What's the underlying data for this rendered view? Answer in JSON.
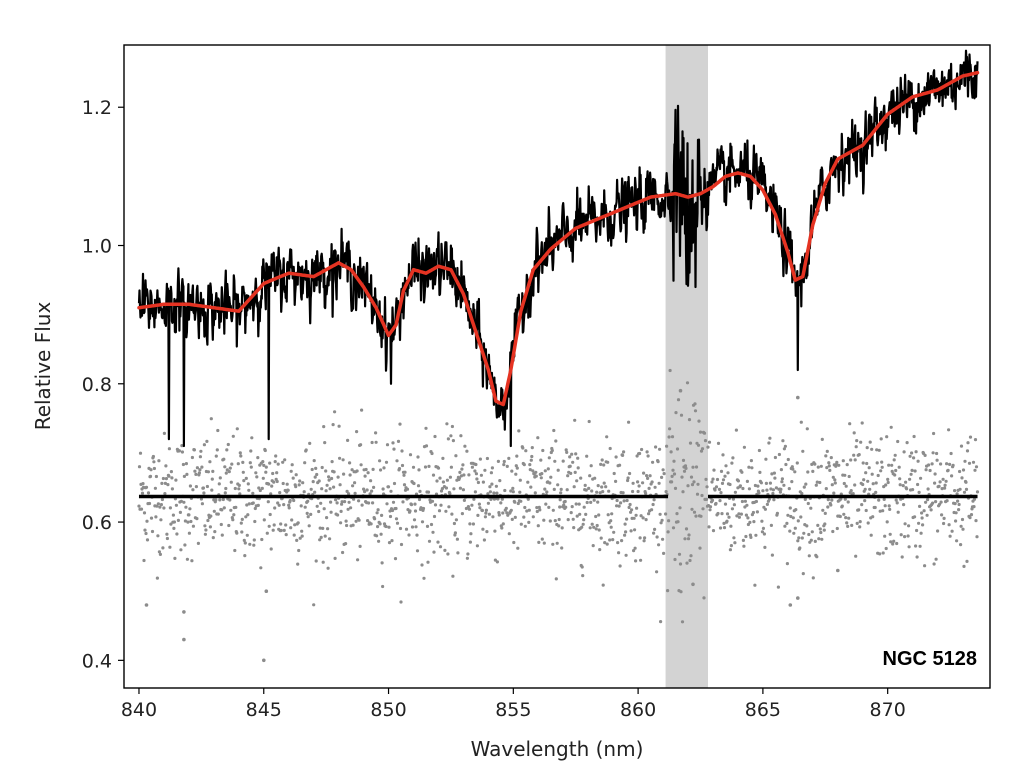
{
  "chart_data": {
    "type": "line",
    "title": "",
    "xlabel": "Wavelength (nm)",
    "ylabel": "Relative Flux",
    "xlim": [
      839.4,
      874.1
    ],
    "ylim": [
      0.36,
      1.29
    ],
    "grid": false,
    "legend": "none",
    "x_ticks": [
      840,
      845,
      850,
      855,
      860,
      865,
      870
    ],
    "x_tick_labels": [
      "840",
      "845",
      "850",
      "855",
      "860",
      "865",
      "870"
    ],
    "y_ticks": [
      0.4,
      0.6,
      0.8,
      1.0,
      1.2
    ],
    "y_tick_labels": [
      "0.4",
      "0.6",
      "0.8",
      "1.0",
      "1.2"
    ],
    "annotation": "NGC 5128",
    "masked_region": {
      "x_start": 861.1,
      "x_end": 862.8,
      "color": "#d3d3d3"
    },
    "residual_baseline": {
      "y": 0.637,
      "segments": [
        [
          840.0,
          861.2
        ],
        [
          862.8,
          873.6
        ]
      ],
      "color": "#000000"
    },
    "model_fit": {
      "color": "#e53322",
      "x": [
        840.0,
        841.0,
        842.0,
        843.0,
        844.0,
        845.0,
        846.0,
        847.0,
        848.0,
        848.5,
        849.0,
        849.5,
        850.0,
        850.3,
        850.6,
        851.0,
        851.5,
        852.0,
        852.5,
        853.0,
        853.5,
        854.0,
        854.3,
        854.6,
        854.9,
        855.3,
        855.8,
        856.5,
        857.5,
        858.5,
        859.5,
        860.5,
        861.5,
        862.0,
        862.5,
        863.0,
        863.5,
        864.0,
        864.5,
        865.0,
        865.5,
        866.0,
        866.3,
        866.6,
        867.0,
        867.5,
        868.0,
        869.0,
        870.0,
        871.0,
        872.0,
        873.0,
        873.6
      ],
      "y": [
        0.91,
        0.915,
        0.915,
        0.91,
        0.905,
        0.945,
        0.96,
        0.955,
        0.975,
        0.965,
        0.94,
        0.91,
        0.87,
        0.885,
        0.935,
        0.965,
        0.96,
        0.97,
        0.965,
        0.93,
        0.875,
        0.82,
        0.775,
        0.77,
        0.82,
        0.905,
        0.965,
        0.995,
        1.025,
        1.04,
        1.055,
        1.07,
        1.075,
        1.07,
        1.075,
        1.085,
        1.1,
        1.105,
        1.1,
        1.08,
        1.045,
        0.99,
        0.95,
        0.955,
        1.03,
        1.09,
        1.125,
        1.145,
        1.19,
        1.215,
        1.225,
        1.245,
        1.25
      ]
    },
    "data_series": {
      "color": "#000000",
      "x_start": 840.0,
      "x_end": 873.6,
      "noise_amplitude": 0.032,
      "absorption_spikes": [
        [
          841.2,
          0.72
        ],
        [
          841.8,
          0.71
        ],
        [
          845.2,
          0.72
        ],
        [
          850.1,
          0.8
        ],
        [
          854.9,
          0.71
        ],
        [
          862.3,
          0.94
        ],
        [
          866.4,
          0.82
        ]
      ]
    },
    "residual_points": {
      "color": "#8c8c8c",
      "center": 0.637,
      "spread": 0.045,
      "outliers": [
        [
          840.3,
          0.48
        ],
        [
          841.8,
          0.43
        ],
        [
          841.8,
          0.47
        ],
        [
          845.0,
          0.4
        ],
        [
          845.1,
          0.5
        ],
        [
          866.1,
          0.48
        ],
        [
          866.4,
          0.49
        ],
        [
          866.4,
          0.78
        ],
        [
          861.7,
          0.79
        ],
        [
          868.0,
          0.53
        ],
        [
          862.2,
          0.51
        ]
      ]
    }
  }
}
